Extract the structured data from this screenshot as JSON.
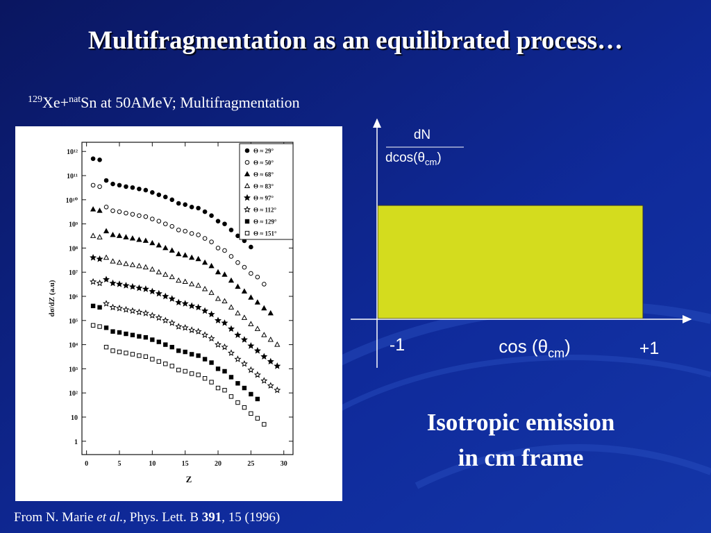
{
  "slide": {
    "title": "Multifragmentation as an equilibrated process…",
    "subtitle": {
      "mass": "129",
      "projectile": "Xe+",
      "nat": "nat",
      "rest": "Sn at 50AMeV; Multifragmentation"
    },
    "diagram": {
      "numerator": "dN",
      "denominator": "dcos(θ",
      "den_sub": "cm",
      "den_close": ")",
      "x_min_label": "-1",
      "x_max_label": "+1",
      "x_label": "cos (θ",
      "x_sub": "cm",
      "x_close": ")"
    },
    "conclusion": [
      "Isotropic emission",
      "in cm frame"
    ],
    "citation": {
      "a": "From N. Marie ",
      "b": "et al.,",
      "c": " Phys. Lett. B ",
      "d": "391",
      "e": ", 15 (1996)"
    }
  },
  "chart_data": {
    "type": "scatter",
    "xlabel": "Z",
    "ylabel": "dσ/dZ (a.u)",
    "yscale": "log",
    "grid": false,
    "xlim": [
      -0.7,
      31.4
    ],
    "xticks": [
      0,
      5,
      10,
      15,
      20,
      25,
      30
    ],
    "ylim": [
      0.28,
      2400000000000.0
    ],
    "yticks": [
      1,
      10,
      {
        "value": 100,
        "label": "10²"
      },
      {
        "value": 1000.0,
        "label": "10³"
      },
      {
        "value": 10000.0,
        "label": "10⁴"
      },
      {
        "value": 100000.0,
        "label": "10⁵"
      },
      {
        "value": 1000000.0,
        "label": "10⁶"
      },
      {
        "value": 10000000.0,
        "label": "10⁷"
      },
      {
        "value": 100000000.0,
        "label": "10⁸"
      },
      {
        "value": 1000000000.0,
        "label": "10⁹"
      },
      {
        "value": 10000000000.0,
        "label": "10¹⁰"
      },
      {
        "value": 100000000000.0,
        "label": "10¹¹"
      },
      {
        "value": 1000000000000.0,
        "label": "10¹²"
      }
    ],
    "x": [
      1,
      2,
      3,
      4,
      5,
      6,
      7,
      8,
      9,
      10,
      11,
      12,
      13,
      14,
      15,
      16,
      17,
      18,
      19,
      20,
      21,
      22,
      23,
      24,
      25,
      26,
      27,
      28,
      29
    ],
    "series": [
      {
        "name": "Θ ≈ 29°",
        "color": "#000000",
        "marker": "circle",
        "filled": true,
        "values": [
          500000000000.0,
          450000000000.0,
          63000000000.0,
          45000000000.0,
          40000000000.0,
          35000000000.0,
          32000000000.0,
          28000000000.0,
          25000000000.0,
          20000000000.0,
          16000000000.0,
          13000000000.0,
          10000000000.0,
          7100000000.0,
          6300000000.0,
          5000000000.0,
          4500000000.0,
          3200000000.0,
          2200000000.0,
          1300000000.0,
          1000000000.0,
          560000000.0,
          320000000.0,
          200000000.0,
          110000000.0,
          null,
          null,
          null,
          null
        ]
      },
      {
        "name": "Θ ≈ 50°",
        "color": "#000000",
        "marker": "circle",
        "filled": false,
        "values": [
          40000000000.0,
          35000000000.0,
          5000000000.0,
          3500000000.0,
          3200000000.0,
          2800000000.0,
          2500000000.0,
          2200000000.0,
          2000000000.0,
          1600000000.0,
          1300000000.0,
          1000000000.0,
          790000000.0,
          560000000.0,
          500000000.0,
          400000000.0,
          350000000.0,
          250000000.0,
          180000000.0,
          100000000.0,
          79000000.0,
          45000000.0,
          25000000.0,
          16000000.0,
          8900000.0,
          6300000.0,
          3200000.0,
          null,
          null
        ]
      },
      {
        "name": "Θ ≈ 68°",
        "color": "#000000",
        "marker": "triangle",
        "filled": true,
        "values": [
          4000000000.0,
          3500000000.0,
          500000000.0,
          350000000.0,
          320000000.0,
          280000000.0,
          250000000.0,
          220000000.0,
          200000000.0,
          160000000.0,
          130000000.0,
          100000000.0,
          79000000.0,
          56000000.0,
          50000000.0,
          40000000.0,
          35000000.0,
          25000000.0,
          18000000.0,
          10000000.0,
          7900000.0,
          4500000.0,
          2500000.0,
          1600000.0,
          890000.0,
          560000.0,
          320000.0,
          200000.0,
          null
        ]
      },
      {
        "name": "Θ ≈ 83°",
        "color": "#000000",
        "marker": "triangle",
        "filled": false,
        "values": [
          320000000.0,
          280000000.0,
          40000000.0,
          28000000.0,
          25000000.0,
          22000000.0,
          20000000.0,
          18000000.0,
          16000000.0,
          13000000.0,
          10000000.0,
          7900000.0,
          6300000.0,
          4500000.0,
          4000000.0,
          3200000.0,
          2800000.0,
          2000000.0,
          1400000.0,
          790000.0,
          630000.0,
          350000.0,
          200000.0,
          130000.0,
          71000.0,
          45000.0,
          25000.0,
          16000.0,
          10000.0
        ]
      },
      {
        "name": "Θ ≈ 97°",
        "color": "#000000",
        "marker": "star",
        "filled": true,
        "values": [
          40000000.0,
          35000000.0,
          5000000.0,
          3500000.0,
          3200000.0,
          2800000.0,
          2500000.0,
          2200000.0,
          2000000.0,
          1600000.0,
          1300000.0,
          1000000.0,
          790000.0,
          560000.0,
          500000.0,
          400000.0,
          350000.0,
          250000.0,
          180000.0,
          100000.0,
          79000.0,
          45000.0,
          25000.0,
          16000.0,
          8900.0,
          5600.0,
          3200.0,
          2000.0,
          1300.0
        ]
      },
      {
        "name": "Θ ≈ 112°",
        "color": "#000000",
        "marker": "star",
        "filled": false,
        "values": [
          4000000.0,
          3500000.0,
          500000.0,
          350000.0,
          320000.0,
          280000.0,
          250000.0,
          220000.0,
          200000.0,
          160000.0,
          130000.0,
          100000.0,
          79000.0,
          56000.0,
          50000.0,
          40000.0,
          35000.0,
          25000.0,
          18000.0,
          10000.0,
          7900.0,
          4500.0,
          2500.0,
          1600.0,
          890,
          560,
          320,
          200,
          130
        ]
      },
      {
        "name": "Θ ≈ 129°",
        "color": "#000000",
        "marker": "square",
        "filled": true,
        "values": [
          400000.0,
          350000.0,
          50000.0,
          35000.0,
          32000.0,
          28000.0,
          25000.0,
          22000.0,
          20000.0,
          16000.0,
          13000.0,
          10000.0,
          7900.0,
          5600.0,
          5000.0,
          4000.0,
          3500.0,
          2500.0,
          1800.0,
          1000.0,
          790,
          450,
          250,
          160,
          89,
          56,
          null,
          null,
          null
        ]
      },
      {
        "name": "Θ ≈ 151°",
        "color": "#000000",
        "marker": "square",
        "filled": false,
        "values": [
          63000.0,
          56000.0,
          7900.0,
          5600.0,
          5000.0,
          4500.0,
          4000.0,
          3500.0,
          3200.0,
          2500.0,
          2000.0,
          1600.0,
          1300.0,
          890,
          790,
          630,
          560,
          400,
          280,
          160,
          130,
          71,
          40,
          25,
          14,
          8.9,
          5,
          null,
          null
        ]
      }
    ]
  }
}
